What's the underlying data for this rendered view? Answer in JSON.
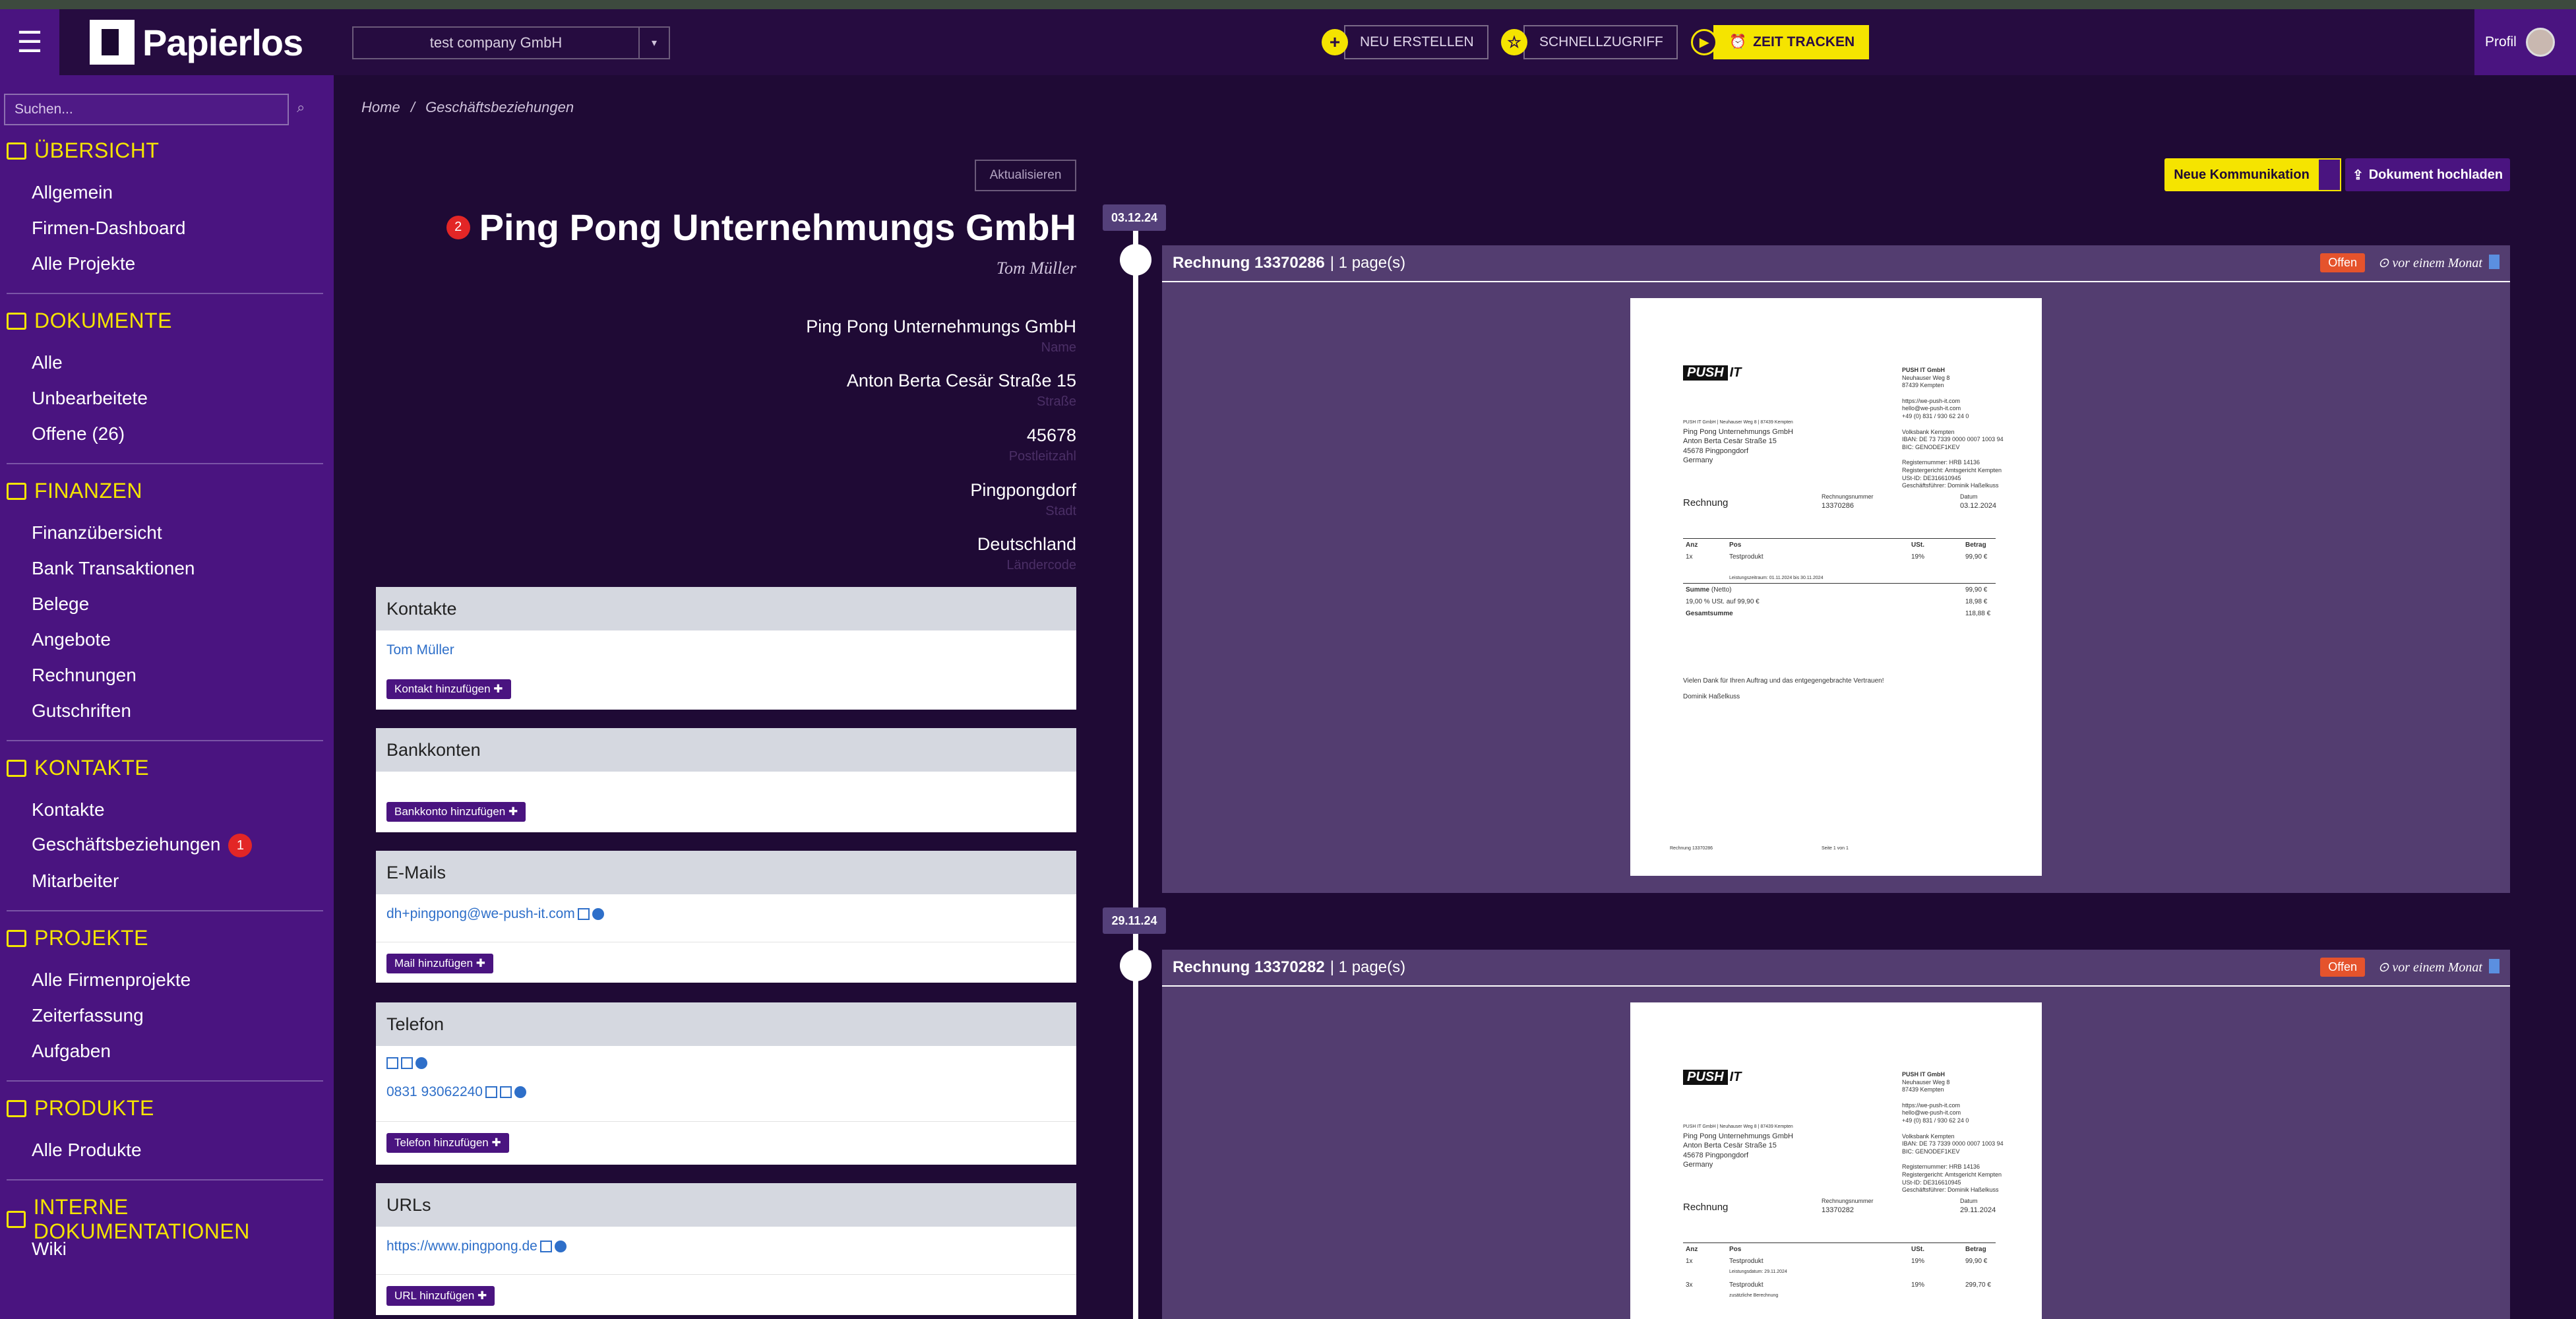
{
  "app": {
    "brand": "Papierlos",
    "company_select": "test company GmbH",
    "new_button": "NEU ERSTELLEN",
    "quick_button": "SCHNELLZUGRIFF",
    "track_button": "ZEIT TRACKEN",
    "profile": "Profil"
  },
  "sidebar": {
    "search_placeholder": "Suchen...",
    "sections": [
      {
        "title": "ÜBERSICHT",
        "items": [
          "Allgemein",
          "Firmen-Dashboard",
          "Alle Projekte"
        ]
      },
      {
        "title": "DOKUMENTE",
        "items": [
          "Alle",
          "Unbearbeitete",
          "Offene (26)"
        ]
      },
      {
        "title": "FINANZEN",
        "items": [
          "Finanzübersicht",
          "Bank Transaktionen",
          "Belege",
          "Angebote",
          "Rechnungen",
          "Gutschriften"
        ]
      },
      {
        "title": "KONTAKTE",
        "items": [
          "Kontakte",
          "Geschäftsbeziehungen",
          "Mitarbeiter"
        ]
      },
      {
        "title": "PROJEKTE",
        "items": [
          "Alle Firmenprojekte",
          "Zeiterfassung",
          "Aufgaben"
        ]
      },
      {
        "title": "PRODUKTE",
        "items": [
          "Alle Produkte"
        ]
      },
      {
        "title": "INTERNE DOKUMENTATIONEN",
        "items": [
          "Wiki"
        ]
      }
    ],
    "relations_badge": "1"
  },
  "breadcrumb": {
    "home": "Home",
    "sep": "/",
    "current": "Geschäftsbeziehungen"
  },
  "detail": {
    "refresh": "Aktualisieren",
    "badge": "2",
    "title": "Ping Pong Unternehmungs GmbH",
    "contact": "Tom Müller",
    "fields": [
      {
        "value": "Ping Pong Unternehmungs GmbH",
        "label": "Name"
      },
      {
        "value": "Anton Berta Cesär Straße 15",
        "label": "Straße"
      },
      {
        "value": "45678",
        "label": "Postleitzahl"
      },
      {
        "value": "Pingpongdorf",
        "label": "Stadt"
      },
      {
        "value": "Deutschland",
        "label": "Ländercode"
      }
    ]
  },
  "cards": {
    "contacts": {
      "title": "Kontakte",
      "link": "Tom Müller",
      "button": "Kontakt hinzufügen ✚"
    },
    "bank": {
      "title": "Bankkonten",
      "button": "Bankkonto hinzufügen ✚"
    },
    "mail": {
      "title": "E-Mails",
      "link": "dh+pingpong@we-push-it.com",
      "button": "Mail hinzufügen ✚"
    },
    "phone": {
      "title": "Telefon",
      "link": "0831 93062240",
      "button": "Telefon hinzufügen ✚"
    },
    "urls": {
      "title": "URLs",
      "link": "https://www.pingpong.de",
      "button": "URL hinzufügen ✚"
    }
  },
  "timeline": {
    "new_comm": "Neue Kommunikation",
    "upload": "Dokument hochladen",
    "entries": [
      {
        "date": "03.12.24",
        "title": "Rechnung 13370286",
        "pages": "| 1 page(s)",
        "status": "Offen",
        "time": "vor einem Monat",
        "doc": {
          "label": "Rechnung",
          "number_label": "Rechnungsnummer",
          "number": "13370286",
          "date_label": "Datum",
          "date": "03.12.2024",
          "period": "Leistungszeitraum: 01.11.2024 bis 30.11.2024",
          "row": [
            "1x",
            "Testprodukt",
            "19%",
            "99,90 €"
          ],
          "net": "99,90 €",
          "vat": "18,98 €",
          "total": "118,88 €",
          "thanks": "Vielen Dank für Ihren Auftrag und das entgegengebrachte Vertrauen!",
          "signer": "Dominik Haßelkuss",
          "footer_left": "Rechnung 13370286",
          "footer_right": "Seite 1 von 1"
        }
      },
      {
        "date": "29.11.24",
        "title": "Rechnung 13370282",
        "pages": "| 1 page(s)",
        "status": "Offen",
        "time": "vor einem Monat",
        "doc": {
          "label": "Rechnung",
          "number_label": "Rechnungsnummer",
          "number": "13370282",
          "date_label": "Datum",
          "date": "29.11.2024",
          "period": "Leistungsdatum: 29.11.2024",
          "row": [
            "1x",
            "Testprodukt",
            "19%",
            "99,90 €"
          ],
          "row2": [
            "3x",
            "Testprodukt",
            "19%",
            "299,70 €"
          ],
          "extra": "zusätzliche Berechnung"
        }
      }
    ]
  },
  "doc_common": {
    "logo_a": "PUSH",
    "logo_b": "IT",
    "sender_line": "PUSH IT GmbH | Neuhauser Weg 8 | 87439 Kempten",
    "recipient": [
      "Ping Pong Unternehmungs GmbH",
      "Anton Berta Cesär Straße 15",
      "45678 Pingpongdorf",
      "Germany"
    ],
    "company_block": [
      "PUSH IT GmbH",
      "Neuhauser Weg 8",
      "87439 Kempten",
      "",
      "https://we-push-it.com",
      "hello@we-push-it.com",
      "+49 (0) 831 / 930 62 24 0",
      "",
      "Volksbank Kempten",
      "IBAN: DE 73 7339 0000 0007 1003 94",
      "BIC: GENODEF1KEV",
      "",
      "Registernummer: HRB 14136",
      "Registergericht: Amtsgericht Kempten",
      "USt-ID: DE316610945",
      "Geschäftsführer: Dominik Haßelkuss"
    ],
    "col_headers": [
      "Anz",
      "Pos",
      "USt.",
      "Betrag"
    ],
    "sum_label": "Summe",
    "sum_sub": "(Netto)",
    "vat_label": "19,00 % USt. auf 99,90 €",
    "total_label": "Gesamtsumme"
  }
}
